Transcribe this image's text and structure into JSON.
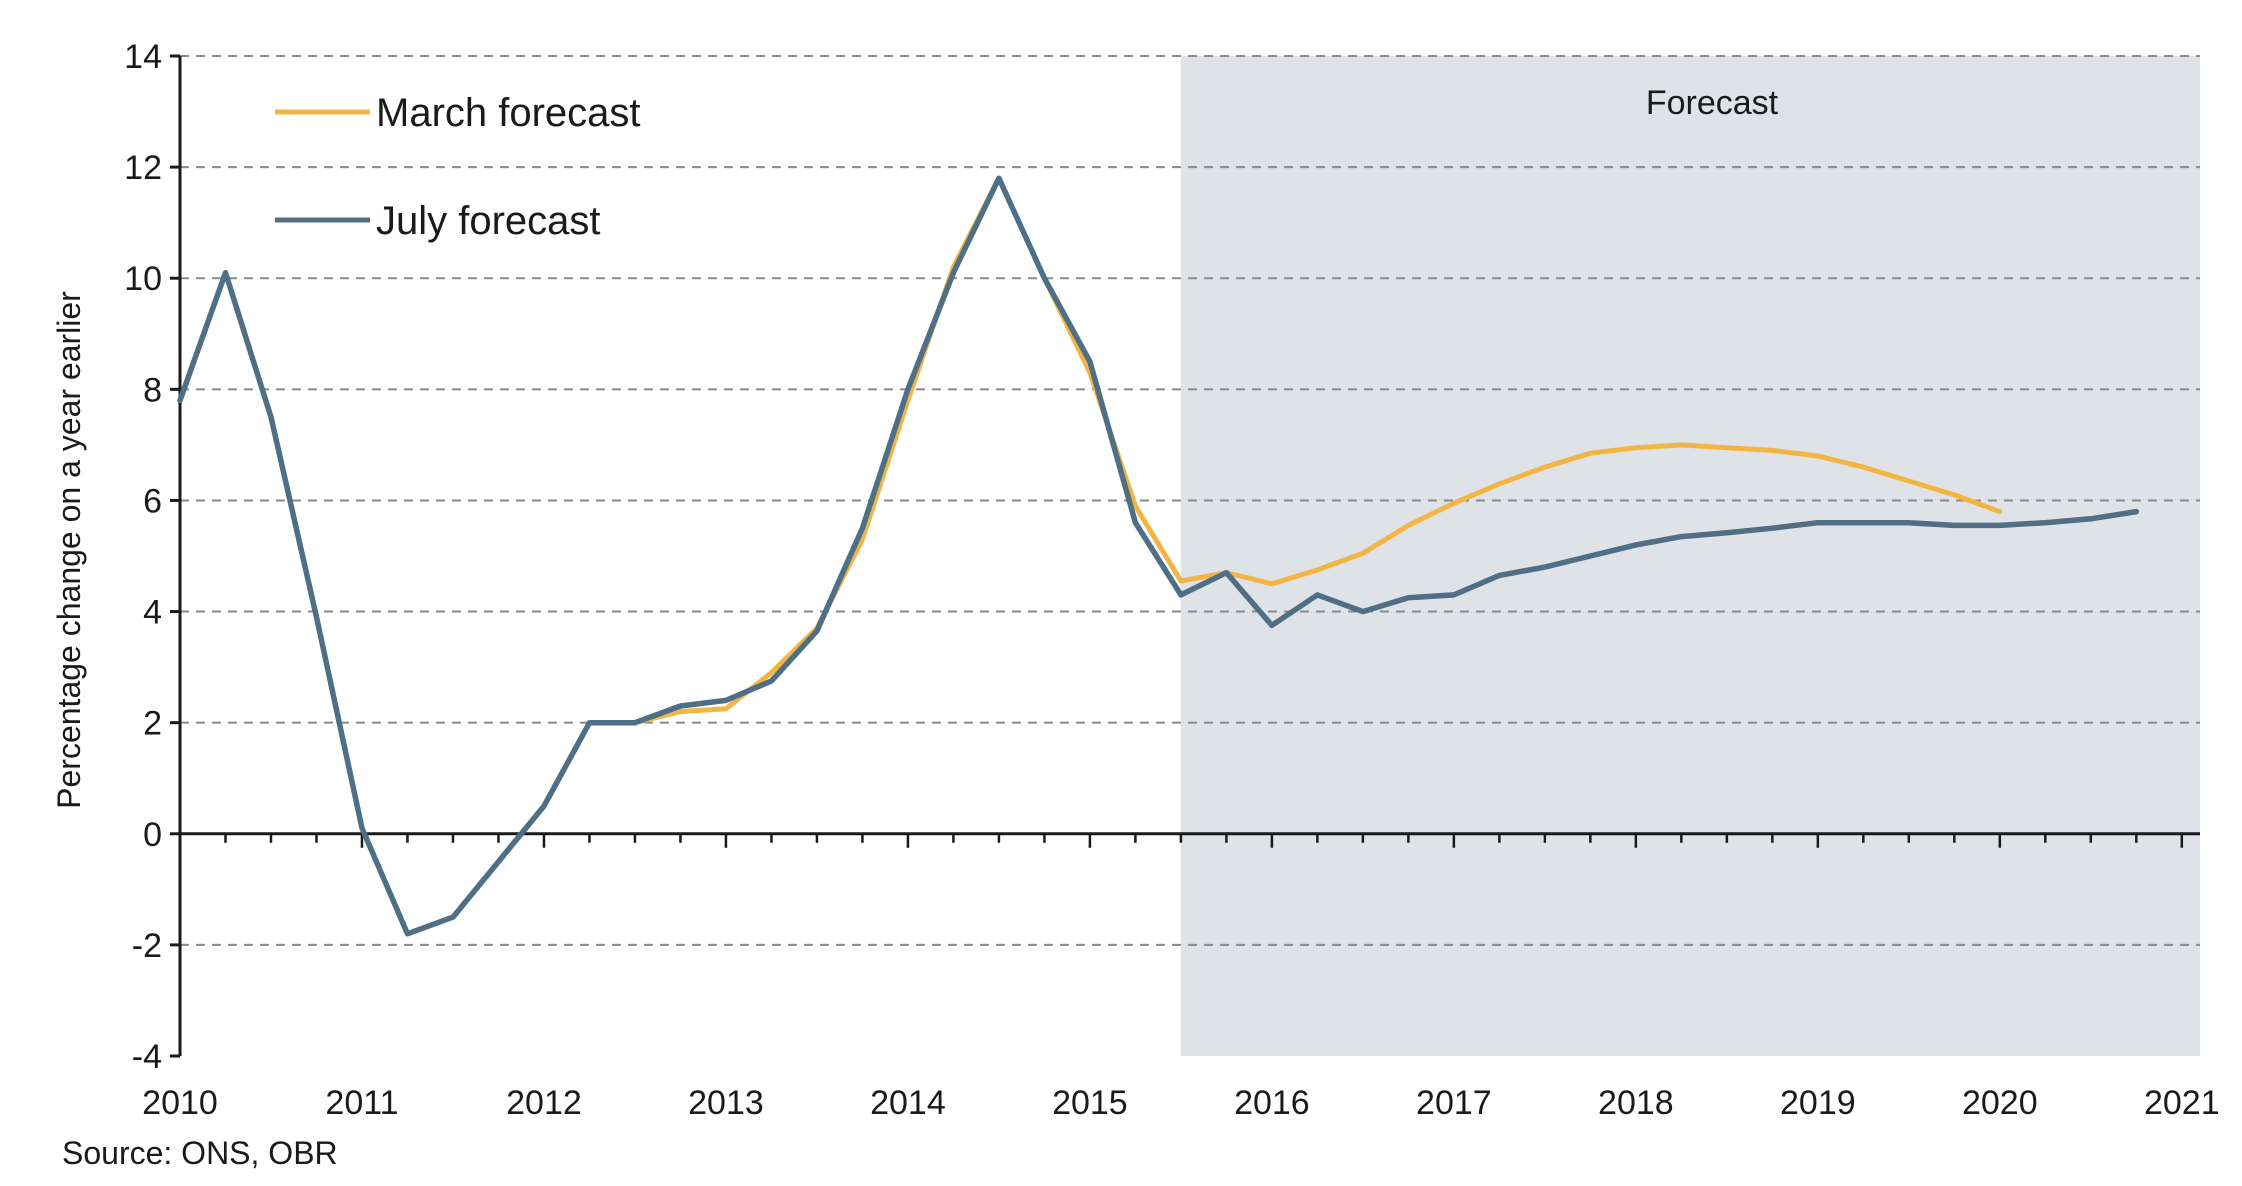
{
  "chart_data": {
    "type": "line",
    "title": "",
    "xlabel": "",
    "ylabel": "Percentage change on a year earlier",
    "xlim": [
      2010,
      2021
    ],
    "ylim": [
      -4,
      14
    ],
    "yticks": [
      -4,
      -2,
      0,
      2,
      4,
      6,
      8,
      10,
      12,
      14
    ],
    "ytick_labels": [
      "-4",
      "-2",
      "0",
      "2",
      "4",
      "6",
      "8",
      "10",
      "12",
      "14"
    ],
    "xticks": [
      2010,
      2011,
      2012,
      2013,
      2014,
      2015,
      2016,
      2017,
      2018,
      2019,
      2020,
      2021
    ],
    "xtick_labels": [
      "2010",
      "2011",
      "2012",
      "2013",
      "2014",
      "2015",
      "2016",
      "2017",
      "2018",
      "2019",
      "2020",
      "2021"
    ],
    "grid": true,
    "legend_position": "top-left",
    "shaded_region": {
      "label": "Forecast",
      "x_start": 2015.5,
      "x_end": 2021.1
    },
    "series": [
      {
        "name": "March forecast",
        "color": "#f2b544",
        "x": [
          2010.0,
          2010.25,
          2010.5,
          2010.75,
          2011.0,
          2011.25,
          2011.5,
          2011.75,
          2012.0,
          2012.25,
          2012.5,
          2012.75,
          2013.0,
          2013.25,
          2013.5,
          2013.75,
          2014.0,
          2014.25,
          2014.5,
          2014.75,
          2015.0,
          2015.25,
          2015.5,
          2015.75,
          2016.0,
          2016.25,
          2016.5,
          2016.75,
          2017.0,
          2017.25,
          2017.5,
          2017.75,
          2018.0,
          2018.25,
          2018.5,
          2018.75,
          2019.0,
          2019.25,
          2019.5,
          2019.75,
          2020.0
        ],
        "values": [
          7.8,
          10.1,
          7.5,
          3.9,
          0.1,
          -1.8,
          -1.5,
          -0.5,
          0.5,
          2.0,
          2.0,
          2.2,
          2.25,
          2.9,
          3.7,
          5.3,
          7.8,
          10.2,
          11.8,
          10.0,
          8.3,
          5.9,
          4.55,
          4.7,
          4.5,
          4.75,
          5.05,
          5.55,
          5.95,
          6.3,
          6.6,
          6.85,
          6.95,
          7.0,
          6.95,
          6.9,
          6.8,
          6.6,
          6.35,
          6.1,
          5.8
        ]
      },
      {
        "name": "July forecast",
        "color": "#4e6f86",
        "x": [
          2010.0,
          2010.25,
          2010.5,
          2010.75,
          2011.0,
          2011.25,
          2011.5,
          2011.75,
          2012.0,
          2012.25,
          2012.5,
          2012.75,
          2013.0,
          2013.25,
          2013.5,
          2013.75,
          2014.0,
          2014.25,
          2014.5,
          2014.75,
          2015.0,
          2015.25,
          2015.5,
          2015.75,
          2016.0,
          2016.25,
          2016.5,
          2016.75,
          2017.0,
          2017.25,
          2017.5,
          2017.75,
          2018.0,
          2018.25,
          2018.5,
          2018.75,
          2019.0,
          2019.25,
          2019.5,
          2019.75,
          2020.0,
          2020.25,
          2020.5,
          2020.75
        ],
        "values": [
          7.8,
          10.1,
          7.5,
          3.9,
          0.1,
          -1.8,
          -1.5,
          -0.5,
          0.5,
          2.0,
          2.0,
          2.3,
          2.4,
          2.75,
          3.65,
          5.5,
          8.0,
          10.1,
          11.8,
          10.0,
          8.5,
          5.6,
          4.3,
          4.7,
          3.75,
          4.3,
          4.0,
          4.25,
          4.3,
          4.65,
          4.8,
          5.0,
          5.2,
          5.35,
          5.42,
          5.5,
          5.6,
          5.6,
          5.6,
          5.55,
          5.55,
          5.6,
          5.67,
          5.8
        ]
      }
    ]
  },
  "legend": {
    "march_label": "March forecast",
    "july_label": "July forecast"
  },
  "forecast_region_label": "Forecast",
  "source": "Source: ONS, OBR"
}
